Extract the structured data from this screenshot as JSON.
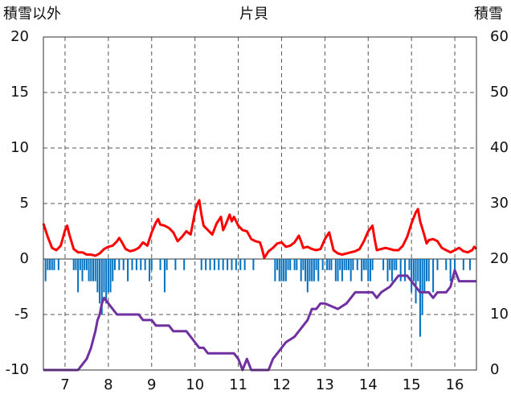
{
  "chart_data": {
    "type": "line",
    "title": "片貝",
    "ylabel_left": "積雪以外",
    "ylabel_right": "積雪",
    "x_ticks": [
      "7",
      "8",
      "9",
      "10",
      "11",
      "12",
      "13",
      "14",
      "15",
      "16"
    ],
    "x_range": [
      6.5,
      16.5
    ],
    "y_left_range": [
      -10,
      20
    ],
    "y_left_ticks": [
      "20",
      "15",
      "10",
      "5",
      "0",
      "-5",
      "-10"
    ],
    "y_right_range": [
      0,
      60
    ],
    "y_right_ticks": [
      "60",
      "50",
      "40",
      "30",
      "20",
      "10",
      "0"
    ],
    "grid": true,
    "series": [
      {
        "key": "temperature",
        "axis": "left",
        "color": "#ff0000",
        "points": [
          [
            6.5,
            3.2
          ],
          [
            6.6,
            2.0
          ],
          [
            6.7,
            1.0
          ],
          [
            6.8,
            0.8
          ],
          [
            6.9,
            1.2
          ],
          [
            7.0,
            2.6
          ],
          [
            7.05,
            3.0
          ],
          [
            7.1,
            2.2
          ],
          [
            7.2,
            0.9
          ],
          [
            7.3,
            0.6
          ],
          [
            7.4,
            0.6
          ],
          [
            7.5,
            0.4
          ],
          [
            7.6,
            0.4
          ],
          [
            7.7,
            0.3
          ],
          [
            7.8,
            0.5
          ],
          [
            7.9,
            0.9
          ],
          [
            8.0,
            1.1
          ],
          [
            8.1,
            1.2
          ],
          [
            8.2,
            1.6
          ],
          [
            8.25,
            1.9
          ],
          [
            8.3,
            1.6
          ],
          [
            8.4,
            0.9
          ],
          [
            8.5,
            0.7
          ],
          [
            8.6,
            0.8
          ],
          [
            8.7,
            1.0
          ],
          [
            8.8,
            1.5
          ],
          [
            8.9,
            1.2
          ],
          [
            9.0,
            2.4
          ],
          [
            9.1,
            3.3
          ],
          [
            9.15,
            3.6
          ],
          [
            9.2,
            3.1
          ],
          [
            9.3,
            3.0
          ],
          [
            9.4,
            2.8
          ],
          [
            9.5,
            2.4
          ],
          [
            9.6,
            1.6
          ],
          [
            9.7,
            2.0
          ],
          [
            9.8,
            2.5
          ],
          [
            9.9,
            2.2
          ],
          [
            10.0,
            4.2
          ],
          [
            10.05,
            4.9
          ],
          [
            10.1,
            5.3
          ],
          [
            10.15,
            4.0
          ],
          [
            10.2,
            3.0
          ],
          [
            10.3,
            2.6
          ],
          [
            10.4,
            2.2
          ],
          [
            10.5,
            3.2
          ],
          [
            10.6,
            3.8
          ],
          [
            10.65,
            2.6
          ],
          [
            10.7,
            3.0
          ],
          [
            10.8,
            4.0
          ],
          [
            10.85,
            3.4
          ],
          [
            10.9,
            3.8
          ],
          [
            11.0,
            3.0
          ],
          [
            11.1,
            2.6
          ],
          [
            11.2,
            2.5
          ],
          [
            11.3,
            1.8
          ],
          [
            11.4,
            1.6
          ],
          [
            11.5,
            1.5
          ],
          [
            11.55,
            0.9
          ],
          [
            11.6,
            0.1
          ],
          [
            11.7,
            0.7
          ],
          [
            11.8,
            1.0
          ],
          [
            11.9,
            1.4
          ],
          [
            12.0,
            1.5
          ],
          [
            12.1,
            1.1
          ],
          [
            12.2,
            1.2
          ],
          [
            12.3,
            1.5
          ],
          [
            12.4,
            2.1
          ],
          [
            12.45,
            1.6
          ],
          [
            12.5,
            1.0
          ],
          [
            12.6,
            1.1
          ],
          [
            12.7,
            0.9
          ],
          [
            12.8,
            0.8
          ],
          [
            12.9,
            0.9
          ],
          [
            13.0,
            1.8
          ],
          [
            13.1,
            2.4
          ],
          [
            13.15,
            1.6
          ],
          [
            13.2,
            0.8
          ],
          [
            13.3,
            0.5
          ],
          [
            13.4,
            0.4
          ],
          [
            13.5,
            0.5
          ],
          [
            13.6,
            0.6
          ],
          [
            13.7,
            0.7
          ],
          [
            13.8,
            0.9
          ],
          [
            13.9,
            1.6
          ],
          [
            14.0,
            2.5
          ],
          [
            14.1,
            3.0
          ],
          [
            14.15,
            1.8
          ],
          [
            14.2,
            0.8
          ],
          [
            14.3,
            0.9
          ],
          [
            14.4,
            1.0
          ],
          [
            14.5,
            0.9
          ],
          [
            14.6,
            0.8
          ],
          [
            14.7,
            0.8
          ],
          [
            14.8,
            1.2
          ],
          [
            14.9,
            2.0
          ],
          [
            15.0,
            3.2
          ],
          [
            15.1,
            4.2
          ],
          [
            15.15,
            4.5
          ],
          [
            15.2,
            3.4
          ],
          [
            15.3,
            2.1
          ],
          [
            15.35,
            1.4
          ],
          [
            15.4,
            1.7
          ],
          [
            15.5,
            1.8
          ],
          [
            15.6,
            1.6
          ],
          [
            15.7,
            1.0
          ],
          [
            15.8,
            0.8
          ],
          [
            15.9,
            0.6
          ],
          [
            16.0,
            0.8
          ],
          [
            16.1,
            1.0
          ],
          [
            16.2,
            0.7
          ],
          [
            16.3,
            0.6
          ],
          [
            16.4,
            0.8
          ],
          [
            16.45,
            1.1
          ],
          [
            16.5,
            0.9
          ]
        ]
      },
      {
        "key": "snow_depth",
        "axis": "right",
        "color": "#7030a0",
        "points": [
          [
            6.5,
            0
          ],
          [
            6.9,
            0
          ],
          [
            7.3,
            0
          ],
          [
            7.4,
            1
          ],
          [
            7.5,
            2
          ],
          [
            7.55,
            3
          ],
          [
            7.6,
            4
          ],
          [
            7.7,
            7
          ],
          [
            7.75,
            9
          ],
          [
            7.8,
            10
          ],
          [
            7.85,
            12
          ],
          [
            7.9,
            13
          ],
          [
            8.0,
            12
          ],
          [
            8.1,
            11
          ],
          [
            8.2,
            10
          ],
          [
            8.5,
            10
          ],
          [
            8.7,
            10
          ],
          [
            8.8,
            9
          ],
          [
            9.0,
            9
          ],
          [
            9.1,
            8
          ],
          [
            9.4,
            8
          ],
          [
            9.5,
            7
          ],
          [
            9.8,
            7
          ],
          [
            9.9,
            6
          ],
          [
            10.0,
            5
          ],
          [
            10.1,
            4
          ],
          [
            10.2,
            4
          ],
          [
            10.3,
            3
          ],
          [
            10.9,
            3
          ],
          [
            11.0,
            2
          ],
          [
            11.1,
            0
          ],
          [
            11.2,
            2
          ],
          [
            11.3,
            0
          ],
          [
            11.7,
            0
          ],
          [
            11.8,
            2
          ],
          [
            11.9,
            3
          ],
          [
            12.0,
            4
          ],
          [
            12.1,
            5
          ],
          [
            12.3,
            6
          ],
          [
            12.5,
            8
          ],
          [
            12.6,
            9
          ],
          [
            12.7,
            11
          ],
          [
            12.8,
            11
          ],
          [
            12.9,
            12
          ],
          [
            13.0,
            12
          ],
          [
            13.3,
            11
          ],
          [
            13.5,
            12
          ],
          [
            13.6,
            13
          ],
          [
            13.7,
            14
          ],
          [
            14.0,
            14
          ],
          [
            14.1,
            14
          ],
          [
            14.2,
            13
          ],
          [
            14.3,
            14
          ],
          [
            14.5,
            15
          ],
          [
            14.6,
            16
          ],
          [
            14.7,
            17
          ],
          [
            14.8,
            17
          ],
          [
            14.9,
            17
          ],
          [
            15.0,
            16
          ],
          [
            15.1,
            15
          ],
          [
            15.2,
            14
          ],
          [
            15.4,
            14
          ],
          [
            15.5,
            13
          ],
          [
            15.6,
            14
          ],
          [
            15.8,
            14
          ],
          [
            15.9,
            15
          ],
          [
            16.0,
            18
          ],
          [
            16.1,
            16
          ],
          [
            16.2,
            16
          ],
          [
            16.3,
            16
          ],
          [
            16.5,
            16
          ]
        ]
      },
      {
        "key": "precipitation",
        "axis": "left",
        "type": "bar",
        "color": "#0070c0",
        "points": [
          [
            6.55,
            -2.0
          ],
          [
            6.6,
            -1.0
          ],
          [
            6.65,
            -1.0
          ],
          [
            6.7,
            -1.0
          ],
          [
            6.75,
            -1.0
          ],
          [
            6.85,
            -1.0
          ],
          [
            7.2,
            -1.0
          ],
          [
            7.25,
            -1.0
          ],
          [
            7.3,
            -3.0
          ],
          [
            7.35,
            -1.0
          ],
          [
            7.4,
            -2.0
          ],
          [
            7.45,
            -1.0
          ],
          [
            7.5,
            -1.0
          ],
          [
            7.55,
            -2.0
          ],
          [
            7.6,
            -2.0
          ],
          [
            7.65,
            -2.0
          ],
          [
            7.7,
            -2.0
          ],
          [
            7.75,
            -3.0
          ],
          [
            7.8,
            -4.0
          ],
          [
            7.85,
            -5.0
          ],
          [
            7.9,
            -3.0
          ],
          [
            7.95,
            -4.0
          ],
          [
            8.0,
            -3.0
          ],
          [
            8.05,
            -3.0
          ],
          [
            8.1,
            -2.0
          ],
          [
            8.15,
            -1.0
          ],
          [
            8.25,
            -1.0
          ],
          [
            8.35,
            -1.0
          ],
          [
            8.45,
            -2.0
          ],
          [
            8.55,
            -1.0
          ],
          [
            8.65,
            -1.0
          ],
          [
            8.75,
            -1.0
          ],
          [
            8.85,
            -1.0
          ],
          [
            8.95,
            -2.0
          ],
          [
            9.0,
            -1.0
          ],
          [
            9.2,
            -1.0
          ],
          [
            9.3,
            -3.0
          ],
          [
            9.35,
            -1.0
          ],
          [
            9.55,
            -1.0
          ],
          [
            9.75,
            -1.0
          ],
          [
            10.15,
            -1.0
          ],
          [
            10.25,
            -1.0
          ],
          [
            10.35,
            -1.0
          ],
          [
            10.45,
            -1.0
          ],
          [
            10.55,
            -1.0
          ],
          [
            10.65,
            -1.0
          ],
          [
            10.75,
            -1.0
          ],
          [
            10.85,
            -1.0
          ],
          [
            10.95,
            -1.0
          ],
          [
            11.05,
            -1.0
          ],
          [
            11.15,
            -1.0
          ],
          [
            11.35,
            -1.0
          ],
          [
            11.85,
            -2.0
          ],
          [
            11.9,
            -1.0
          ],
          [
            11.95,
            -2.0
          ],
          [
            12.0,
            -2.0
          ],
          [
            12.05,
            -2.0
          ],
          [
            12.1,
            -2.0
          ],
          [
            12.15,
            -1.0
          ],
          [
            12.2,
            -1.0
          ],
          [
            12.3,
            -1.0
          ],
          [
            12.35,
            -1.0
          ],
          [
            12.45,
            -2.0
          ],
          [
            12.5,
            -1.0
          ],
          [
            12.55,
            -2.0
          ],
          [
            12.6,
            -3.0
          ],
          [
            12.65,
            -2.0
          ],
          [
            12.7,
            -2.0
          ],
          [
            12.75,
            -2.0
          ],
          [
            12.8,
            -1.0
          ],
          [
            12.85,
            -2.0
          ],
          [
            12.95,
            -1.0
          ],
          [
            13.05,
            -1.0
          ],
          [
            13.1,
            -1.0
          ],
          [
            13.15,
            -1.0
          ],
          [
            13.25,
            -2.0
          ],
          [
            13.3,
            -2.0
          ],
          [
            13.35,
            -1.0
          ],
          [
            13.4,
            -2.0
          ],
          [
            13.45,
            -1.0
          ],
          [
            13.5,
            -1.0
          ],
          [
            13.55,
            -1.0
          ],
          [
            13.6,
            -2.0
          ],
          [
            13.65,
            -1.0
          ],
          [
            13.75,
            -1.0
          ],
          [
            13.85,
            -2.0
          ],
          [
            13.9,
            -1.0
          ],
          [
            13.95,
            -1.0
          ],
          [
            14.0,
            -2.0
          ],
          [
            14.05,
            -2.0
          ],
          [
            14.1,
            -1.0
          ],
          [
            14.35,
            -1.0
          ],
          [
            14.45,
            -2.0
          ],
          [
            14.5,
            -1.0
          ],
          [
            14.55,
            -2.0
          ],
          [
            14.6,
            -1.0
          ],
          [
            14.65,
            -1.0
          ],
          [
            14.75,
            -2.0
          ],
          [
            14.85,
            -2.0
          ],
          [
            14.95,
            -1.0
          ],
          [
            15.0,
            -3.0
          ],
          [
            15.05,
            -2.0
          ],
          [
            15.1,
            -4.0
          ],
          [
            15.15,
            -2.0
          ],
          [
            15.2,
            -7.0
          ],
          [
            15.25,
            -5.0
          ],
          [
            15.3,
            -3.0
          ],
          [
            15.35,
            -2.0
          ],
          [
            15.4,
            -2.0
          ],
          [
            15.5,
            -3.0
          ],
          [
            15.6,
            -1.0
          ],
          [
            15.8,
            -1.0
          ],
          [
            15.9,
            -2.0
          ],
          [
            16.0,
            -1.0
          ],
          [
            16.2,
            -1.0
          ],
          [
            16.35,
            -1.0
          ]
        ]
      }
    ]
  }
}
